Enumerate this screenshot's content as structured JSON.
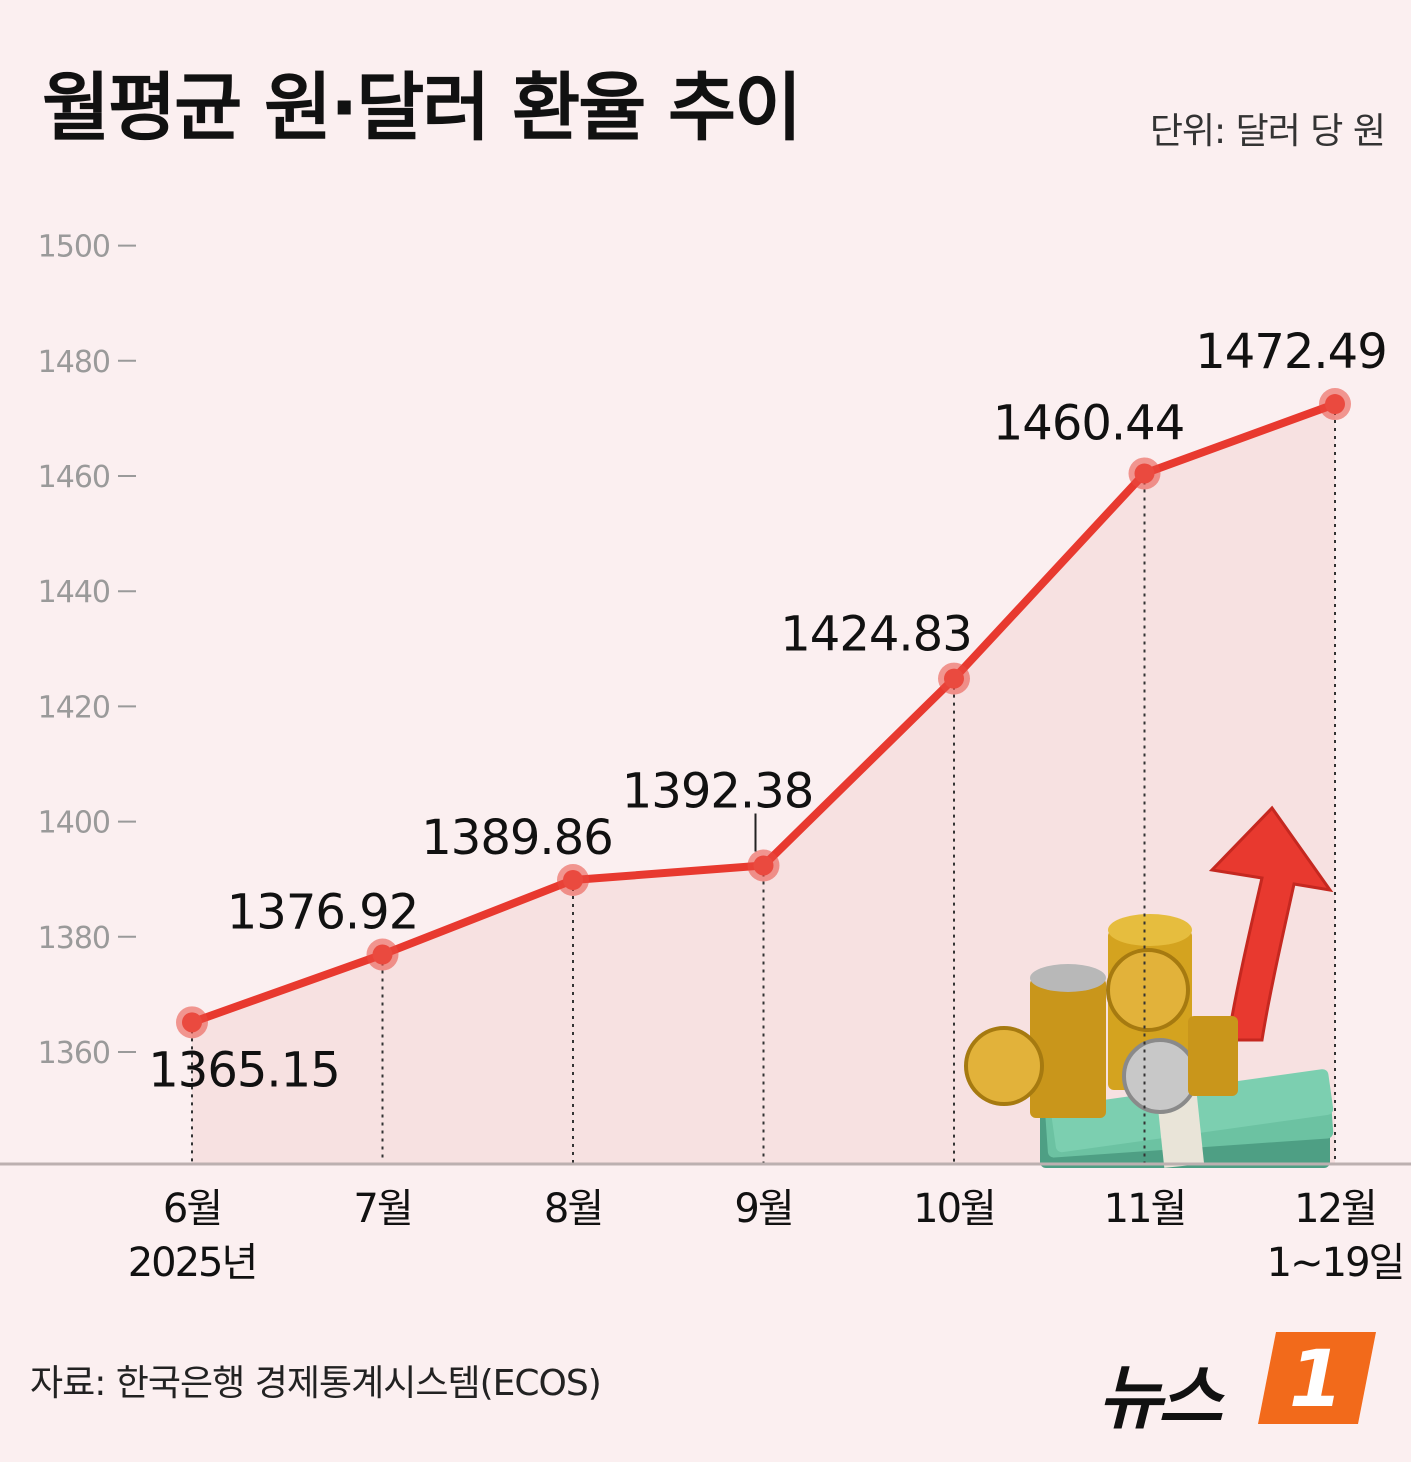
{
  "title": "월평균 원·달러 환율 추이",
  "unit": "단위: 달러 당 원",
  "source": "자료: 한국은행 경제통계시스템(ECOS)",
  "logo": {
    "text": "뉴스",
    "mark": "1"
  },
  "colors": {
    "line": "#e8392f",
    "marker": "#ea4a3f",
    "background": "#fbeff0",
    "fill": "#f6dcdc",
    "arrow": "#e8392f",
    "coin": "#d4a017",
    "cash": "#5fb89a"
  },
  "icons": [
    "coin-stack-icon",
    "banknote-bundle-icon",
    "up-arrow-icon"
  ],
  "chart_data": {
    "type": "line",
    "title": "월평균 원·달러 환율 추이",
    "categories": [
      "6월",
      "7월",
      "8월",
      "9월",
      "10월",
      "11월",
      "12월"
    ],
    "category_sublabels": [
      "2025년",
      "",
      "",
      "",
      "",
      "",
      "1~19일"
    ],
    "values": [
      1365.15,
      1376.92,
      1389.86,
      1392.38,
      1424.83,
      1460.44,
      1472.49
    ],
    "value_labels": [
      "1365.15",
      "1376.92",
      "1389.86",
      "1392.38",
      "1424.83",
      "1460.44",
      "1472.49"
    ],
    "yticks": [
      1360,
      1380,
      1400,
      1420,
      1440,
      1460,
      1480,
      1500
    ],
    "ylim": [
      1340,
      1500
    ],
    "grid": false,
    "legend": "none"
  }
}
